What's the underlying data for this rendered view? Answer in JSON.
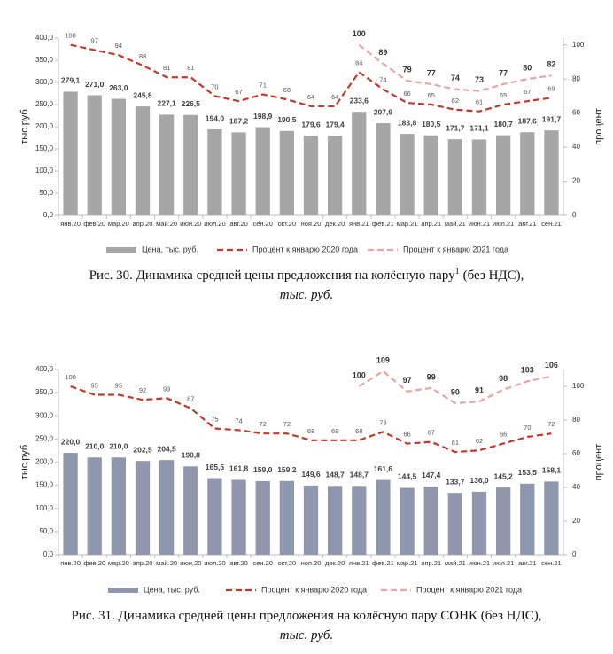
{
  "chart_data": [
    {
      "type": "bar",
      "y_label": "тыс.руб",
      "y2_label": "процент",
      "caption": "Рис. 30. Динамика средней цены предложения на колёсную пару",
      "caption_footnote": "1",
      "caption_end": "(без НДС),",
      "caption_units": "тыс. руб.",
      "categories": [
        "янв.20",
        "фев.20",
        "мар.20",
        "апр.20",
        "май.20",
        "июн.20",
        "июл.20",
        "авг.20",
        "сен.20",
        "окт.20",
        "ноя.20",
        "дек.20",
        "янв.21",
        "фев.21",
        "мар.21",
        "апр.21",
        "май.21",
        "июн.21",
        "июл.21",
        "авг.21",
        "сен.21"
      ],
      "series": [
        {
          "name": "Цена, тыс. руб.",
          "type": "bar",
          "color": "#a6a6a6",
          "values": [
            279.1,
            271.0,
            263.0,
            245.8,
            227.1,
            226.5,
            194.0,
            187.2,
            198.9,
            190.5,
            179.6,
            179.4,
            233.6,
            207.9,
            183.8,
            180.5,
            171.7,
            171.1,
            180.7,
            187.6,
            191.7
          ],
          "value_labels": [
            "279,1",
            "271,0",
            "263,0",
            "245,8",
            "227,1",
            "226,5",
            "194,0",
            "187,2",
            "198,9",
            "190,5",
            "179,6",
            "179,4",
            "233,6",
            "207,9",
            "183,8",
            "180,5",
            "171,7",
            "171,1",
            "180,7",
            "187,6",
            "191,7"
          ]
        },
        {
          "name": "Процент к январю 2020 года",
          "type": "line",
          "axis": "y2",
          "color": "#c0392b",
          "values": [
            100,
            97,
            94,
            88,
            81,
            81,
            70,
            67,
            71,
            68,
            64,
            64,
            84,
            74,
            66,
            65,
            62,
            61,
            65,
            67,
            69
          ]
        },
        {
          "name": "Процент к январю 2021 года",
          "type": "line",
          "axis": "y2",
          "color": "#e8a5a5",
          "values": [
            null,
            null,
            null,
            null,
            null,
            null,
            null,
            null,
            null,
            null,
            null,
            null,
            100,
            89,
            79,
            77,
            74,
            73,
            77,
            80,
            82
          ]
        }
      ],
      "ylim": [
        0,
        400
      ],
      "yticks": [
        {
          "value": 0,
          "label": "0,0"
        },
        {
          "value": 50,
          "label": "50,0"
        },
        {
          "value": 100,
          "label": "100,0"
        },
        {
          "value": 150,
          "label": "150,0"
        },
        {
          "value": 200,
          "label": "200,0"
        },
        {
          "value": 250,
          "label": "250,0"
        },
        {
          "value": 300,
          "label": "300,0"
        },
        {
          "value": 350,
          "label": "350,0"
        },
        {
          "value": 400,
          "label": "400,0"
        }
      ],
      "y2lim": [
        0,
        104
      ],
      "y2ticks": [
        0,
        20,
        40,
        60,
        80,
        100
      ],
      "legend": "bottom"
    },
    {
      "type": "bar",
      "y_label": "тыс.руб",
      "y2_label": "процент",
      "caption": "Рис. 31. Динамика средней цены предложения на колёсную пару СОНК (без НДС),",
      "caption_units": "тыс. руб.",
      "categories": [
        "янв.20",
        "фев.20",
        "мар.20",
        "апр.20",
        "май.20",
        "июн.20",
        "июл.20",
        "авг.20",
        "сен.20",
        "окт.20",
        "ноя.20",
        "дек.20",
        "янв.21",
        "фев.21",
        "мар.21",
        "апр.21",
        "май.21",
        "июн.21",
        "июл.21",
        "авг.21",
        "сен.21"
      ],
      "series": [
        {
          "name": "Цена, тыс. руб.",
          "type": "bar",
          "color": "#8e97ad",
          "values": [
            220.0,
            210.0,
            210.0,
            202.5,
            204.5,
            190.8,
            165.5,
            161.8,
            159.0,
            159.2,
            149.6,
            148.7,
            148.7,
            161.6,
            144.5,
            147.4,
            133.7,
            136.0,
            145.2,
            153.5,
            158.1
          ],
          "value_labels": [
            "220,0",
            "210,0",
            "210,0",
            "202,5",
            "204,5",
            "190,8",
            "165,5",
            "161,8",
            "159,0",
            "159,2",
            "149,6",
            "148,7",
            "148,7",
            "161,6",
            "144,5",
            "147,4",
            "133,7",
            "136,0",
            "145,2",
            "153,5",
            "158,1"
          ]
        },
        {
          "name": "Процент к январю 2020 года",
          "type": "line",
          "axis": "y2",
          "color": "#c0392b",
          "values": [
            100,
            95,
            95,
            92,
            93,
            87,
            75,
            74,
            72,
            72,
            68,
            68,
            68,
            73,
            66,
            67,
            61,
            62,
            66,
            70,
            72
          ]
        },
        {
          "name": "Процент к январю 2021 года",
          "type": "line",
          "axis": "y2",
          "color": "#e8a5a5",
          "values": [
            null,
            null,
            null,
            null,
            null,
            null,
            null,
            null,
            null,
            null,
            null,
            null,
            100,
            109,
            97,
            99,
            90,
            91,
            98,
            103,
            106
          ]
        }
      ],
      "ylim": [
        0,
        400
      ],
      "yticks": [
        {
          "value": 0,
          "label": "0,0"
        },
        {
          "value": 50,
          "label": "50,0"
        },
        {
          "value": 100,
          "label": "100,0"
        },
        {
          "value": 150,
          "label": "150,0"
        },
        {
          "value": 200,
          "label": "200,0"
        },
        {
          "value": 250,
          "label": "250,0"
        },
        {
          "value": 300,
          "label": "300,0"
        },
        {
          "value": 350,
          "label": "350,0"
        },
        {
          "value": 400,
          "label": "400,0"
        }
      ],
      "y2lim": [
        0,
        110
      ],
      "y2ticks": [
        0,
        20,
        40,
        60,
        80,
        100
      ],
      "legend": "bottom"
    }
  ]
}
